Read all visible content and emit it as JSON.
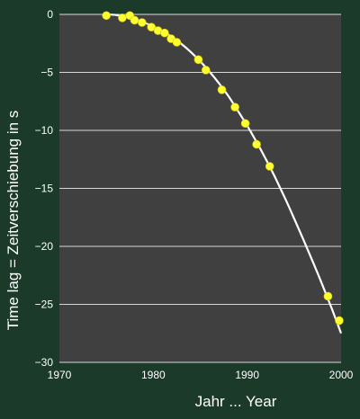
{
  "colors": {
    "background": "#1c3a2a",
    "plot_area": "#404040",
    "grid": "#d8d8d8",
    "curve": "#ffffff",
    "point": "#ffff33",
    "text": "#ffffff"
  },
  "chart_data": {
    "type": "scatter",
    "title": "",
    "xlabel": "Jahr  ... Year",
    "ylabel": "Time lag  =  Zeitverschiebung in s",
    "xlim": [
      1970,
      2000
    ],
    "ylim": [
      -30,
      0
    ],
    "xticks": [
      1970,
      1980,
      1990,
      2000
    ],
    "yticks": [
      0,
      -5,
      -10,
      -15,
      -20,
      -25,
      -30
    ],
    "grid": "horizontal",
    "legend": "none",
    "series": [
      {
        "marker": "circle",
        "points": [
          {
            "x": 1975.0,
            "y": -0.1
          },
          {
            "x": 1976.7,
            "y": -0.3
          },
          {
            "x": 1977.5,
            "y": -0.1
          },
          {
            "x": 1978.0,
            "y": -0.5
          },
          {
            "x": 1978.8,
            "y": -0.7
          },
          {
            "x": 1979.8,
            "y": -1.1
          },
          {
            "x": 1980.5,
            "y": -1.4
          },
          {
            "x": 1981.2,
            "y": -1.6
          },
          {
            "x": 1981.9,
            "y": -2.1
          },
          {
            "x": 1982.5,
            "y": -2.4
          },
          {
            "x": 1984.8,
            "y": -3.9
          },
          {
            "x": 1985.6,
            "y": -4.8
          },
          {
            "x": 1987.3,
            "y": -6.5
          },
          {
            "x": 1988.7,
            "y": -8.0
          },
          {
            "x": 1989.8,
            "y": -9.4
          },
          {
            "x": 1991.0,
            "y": -11.2
          },
          {
            "x": 1992.4,
            "y": -13.1
          },
          {
            "x": 1998.6,
            "y": -24.3
          },
          {
            "x": 1999.8,
            "y": -26.4
          }
        ]
      },
      {
        "style": "smooth-curve",
        "x": [
          1975,
          1976,
          1977,
          1978,
          1979,
          1980,
          1981,
          1982,
          1983,
          1984,
          1985,
          1986,
          1987,
          1988,
          1989,
          1990,
          1991,
          1992,
          1993,
          1994,
          1995,
          1996,
          1997,
          1998,
          1999,
          2000
        ],
        "y": [
          0.0,
          -0.05,
          -0.2,
          -0.4,
          -0.7,
          -1.05,
          -1.45,
          -1.95,
          -2.55,
          -3.25,
          -4.05,
          -4.95,
          -5.95,
          -7.05,
          -8.3,
          -9.6,
          -11.0,
          -12.5,
          -14.1,
          -15.8,
          -17.6,
          -19.45,
          -21.35,
          -23.3,
          -25.35,
          -27.5
        ]
      }
    ]
  }
}
